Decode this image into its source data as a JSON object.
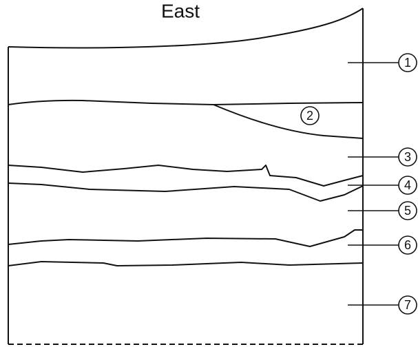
{
  "title": "East",
  "labels": [
    "1",
    "2",
    "3",
    "4",
    "5",
    "6",
    "7"
  ]
}
